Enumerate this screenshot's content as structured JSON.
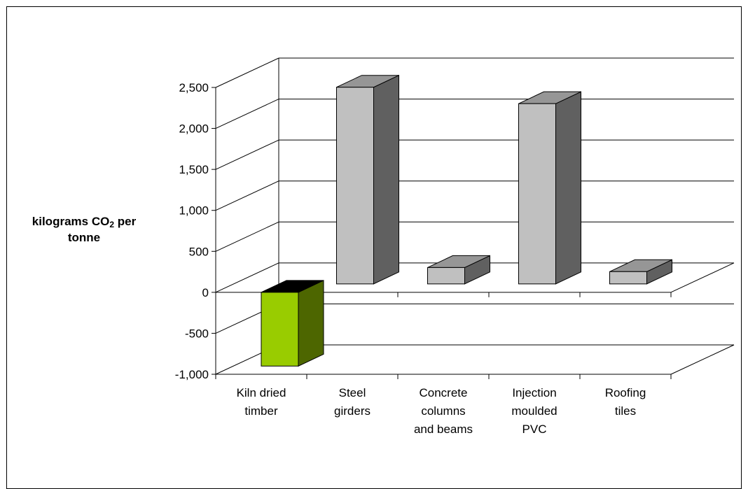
{
  "chart_data": {
    "type": "bar",
    "style": "3d-column",
    "categories": [
      [
        "Kiln dried",
        "timber"
      ],
      [
        "Steel",
        "girders"
      ],
      [
        "Concrete",
        "columns",
        "and beams"
      ],
      [
        "Injection",
        "moulded",
        "PVC"
      ],
      [
        "Roofing",
        "tiles"
      ]
    ],
    "values": [
      -900,
      2400,
      200,
      2200,
      150
    ],
    "ylabel": {
      "prefix": "kilograms CO",
      "subscript": "2",
      "suffix": " per",
      "line2": "tonne"
    },
    "ylim": [
      -1000,
      2500
    ],
    "yticks": [
      -1000,
      -500,
      0,
      500,
      1000,
      1500,
      2000,
      2500
    ],
    "ytick_labels": [
      "-1,000",
      "-500",
      "0",
      "500",
      "1,000",
      "1,500",
      "2,000",
      "2,500"
    ],
    "grid": true,
    "colors": {
      "highlight_front": "#99cc00",
      "highlight_side": "#4d6600",
      "highlight_top": "#000000",
      "bar_front": "#c0c0c0",
      "bar_side": "#606060",
      "bar_top": "#969696",
      "grid": "#000000"
    }
  }
}
